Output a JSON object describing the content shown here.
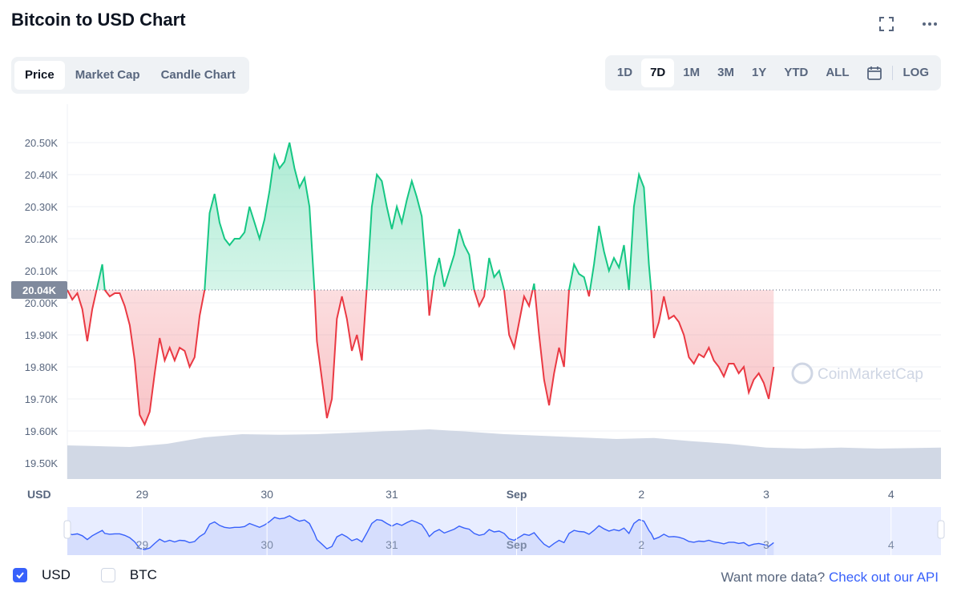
{
  "title": "Bitcoin to USD Chart",
  "tabs": [
    {
      "label": "Price",
      "active": true
    },
    {
      "label": "Market Cap",
      "active": false
    },
    {
      "label": "Candle Chart",
      "active": false
    }
  ],
  "ranges": [
    "1D",
    "7D",
    "1M",
    "3M",
    "1Y",
    "YTD",
    "ALL"
  ],
  "active_range": "7D",
  "log_label": "LOG",
  "icons": {
    "fullscreen": "fullscreen-icon",
    "more": "more-dots-icon",
    "calendar": "calendar-icon"
  },
  "colors": {
    "up": "#16c784",
    "down": "#ea3943",
    "volume": "#cfd6e4",
    "accent": "#3861fb",
    "navigator_line": "#3861fb"
  },
  "chart_data": {
    "type": "line",
    "currency_label": "USD",
    "current_price_label": "20.04K",
    "baseline": 20040,
    "ylim": [
      19450,
      20620
    ],
    "y_ticks": [
      {
        "value": 20500,
        "label": "20.50K"
      },
      {
        "value": 20400,
        "label": "20.40K"
      },
      {
        "value": 20300,
        "label": "20.30K"
      },
      {
        "value": 20200,
        "label": "20.20K"
      },
      {
        "value": 20100,
        "label": "20.10K"
      },
      {
        "value": 20000,
        "label": "20.00K"
      },
      {
        "value": 19900,
        "label": "19.90K"
      },
      {
        "value": 19800,
        "label": "19.80K"
      },
      {
        "value": 19700,
        "label": "19.70K"
      },
      {
        "value": 19600,
        "label": "19.60K"
      },
      {
        "value": 19500,
        "label": "19.50K"
      }
    ],
    "x_start": "Aug 28 ~10:00",
    "x_ticks": [
      {
        "day": 1.0,
        "label": "29"
      },
      {
        "day": 2.0,
        "label": "30"
      },
      {
        "day": 3.0,
        "label": "31"
      },
      {
        "day": 4.0,
        "label": "Sep"
      },
      {
        "day": 5.0,
        "label": "2"
      },
      {
        "day": 6.0,
        "label": "3"
      },
      {
        "day": 7.0,
        "label": "4"
      }
    ],
    "x_range_days": [
      0.4,
      7.4
    ],
    "series": [
      {
        "values": [
          [
            0.4,
            20040
          ],
          [
            0.44,
            20010
          ],
          [
            0.48,
            20030
          ],
          [
            0.52,
            19980
          ],
          [
            0.56,
            19880
          ],
          [
            0.6,
            19980
          ],
          [
            0.64,
            20050
          ],
          [
            0.68,
            20120
          ],
          [
            0.7,
            20040
          ],
          [
            0.74,
            20020
          ],
          [
            0.78,
            20030
          ],
          [
            0.82,
            20030
          ],
          [
            0.86,
            19990
          ],
          [
            0.9,
            19930
          ],
          [
            0.94,
            19820
          ],
          [
            0.98,
            19650
          ],
          [
            1.02,
            19620
          ],
          [
            1.06,
            19660
          ],
          [
            1.1,
            19780
          ],
          [
            1.14,
            19890
          ],
          [
            1.18,
            19820
          ],
          [
            1.22,
            19860
          ],
          [
            1.26,
            19820
          ],
          [
            1.3,
            19860
          ],
          [
            1.34,
            19850
          ],
          [
            1.38,
            19800
          ],
          [
            1.42,
            19830
          ],
          [
            1.46,
            19960
          ],
          [
            1.5,
            20040
          ],
          [
            1.54,
            20280
          ],
          [
            1.58,
            20340
          ],
          [
            1.62,
            20250
          ],
          [
            1.66,
            20200
          ],
          [
            1.7,
            20180
          ],
          [
            1.74,
            20200
          ],
          [
            1.78,
            20200
          ],
          [
            1.82,
            20220
          ],
          [
            1.86,
            20300
          ],
          [
            1.9,
            20250
          ],
          [
            1.94,
            20200
          ],
          [
            1.98,
            20260
          ],
          [
            2.02,
            20350
          ],
          [
            2.06,
            20460
          ],
          [
            2.1,
            20420
          ],
          [
            2.14,
            20440
          ],
          [
            2.18,
            20500
          ],
          [
            2.22,
            20420
          ],
          [
            2.26,
            20360
          ],
          [
            2.3,
            20390
          ],
          [
            2.34,
            20300
          ],
          [
            2.38,
            20040
          ],
          [
            2.4,
            19880
          ],
          [
            2.44,
            19760
          ],
          [
            2.48,
            19640
          ],
          [
            2.52,
            19700
          ],
          [
            2.56,
            19950
          ],
          [
            2.6,
            20020
          ],
          [
            2.64,
            19950
          ],
          [
            2.68,
            19850
          ],
          [
            2.72,
            19900
          ],
          [
            2.76,
            19820
          ],
          [
            2.8,
            20050
          ],
          [
            2.84,
            20300
          ],
          [
            2.88,
            20400
          ],
          [
            2.92,
            20380
          ],
          [
            2.96,
            20300
          ],
          [
            3.0,
            20230
          ],
          [
            3.04,
            20300
          ],
          [
            3.08,
            20250
          ],
          [
            3.12,
            20320
          ],
          [
            3.16,
            20380
          ],
          [
            3.2,
            20330
          ],
          [
            3.24,
            20270
          ],
          [
            3.28,
            20080
          ],
          [
            3.3,
            19960
          ],
          [
            3.34,
            20080
          ],
          [
            3.38,
            20140
          ],
          [
            3.42,
            20050
          ],
          [
            3.46,
            20100
          ],
          [
            3.5,
            20150
          ],
          [
            3.54,
            20230
          ],
          [
            3.58,
            20180
          ],
          [
            3.62,
            20150
          ],
          [
            3.66,
            20040
          ],
          [
            3.7,
            19990
          ],
          [
            3.74,
            20020
          ],
          [
            3.78,
            20140
          ],
          [
            3.82,
            20080
          ],
          [
            3.86,
            20100
          ],
          [
            3.9,
            20040
          ],
          [
            3.94,
            19900
          ],
          [
            3.98,
            19860
          ],
          [
            4.02,
            19940
          ],
          [
            4.06,
            20020
          ],
          [
            4.1,
            19990
          ],
          [
            4.14,
            20060
          ],
          [
            4.18,
            19900
          ],
          [
            4.22,
            19760
          ],
          [
            4.26,
            19680
          ],
          [
            4.3,
            19780
          ],
          [
            4.34,
            19860
          ],
          [
            4.38,
            19800
          ],
          [
            4.42,
            20040
          ],
          [
            4.46,
            20120
          ],
          [
            4.5,
            20090
          ],
          [
            4.54,
            20080
          ],
          [
            4.58,
            20020
          ],
          [
            4.62,
            20120
          ],
          [
            4.66,
            20240
          ],
          [
            4.7,
            20160
          ],
          [
            4.74,
            20100
          ],
          [
            4.78,
            20140
          ],
          [
            4.82,
            20110
          ],
          [
            4.86,
            20180
          ],
          [
            4.9,
            20040
          ],
          [
            4.94,
            20300
          ],
          [
            4.98,
            20400
          ],
          [
            5.02,
            20360
          ],
          [
            5.06,
            20120
          ],
          [
            5.08,
            20030
          ],
          [
            5.1,
            19890
          ],
          [
            5.14,
            19940
          ],
          [
            5.18,
            20020
          ],
          [
            5.22,
            19950
          ],
          [
            5.26,
            19960
          ],
          [
            5.3,
            19940
          ],
          [
            5.34,
            19900
          ],
          [
            5.38,
            19830
          ],
          [
            5.42,
            19810
          ],
          [
            5.46,
            19840
          ],
          [
            5.5,
            19830
          ],
          [
            5.54,
            19860
          ],
          [
            5.58,
            19820
          ],
          [
            5.62,
            19800
          ],
          [
            5.66,
            19770
          ],
          [
            5.7,
            19810
          ],
          [
            5.74,
            19810
          ],
          [
            5.78,
            19780
          ],
          [
            5.82,
            19800
          ],
          [
            5.86,
            19720
          ],
          [
            5.9,
            19760
          ],
          [
            5.94,
            19780
          ],
          [
            5.98,
            19750
          ],
          [
            6.02,
            19700
          ],
          [
            6.06,
            19800
          ]
        ]
      }
    ],
    "volume_series": [
      [
        0.4,
        19555
      ],
      [
        0.6,
        19553
      ],
      [
        0.9,
        19550
      ],
      [
        1.2,
        19560
      ],
      [
        1.5,
        19580
      ],
      [
        1.8,
        19590
      ],
      [
        2.1,
        19588
      ],
      [
        2.4,
        19590
      ],
      [
        2.7,
        19595
      ],
      [
        3.0,
        19600
      ],
      [
        3.3,
        19605
      ],
      [
        3.6,
        19598
      ],
      [
        3.9,
        19590
      ],
      [
        4.2,
        19585
      ],
      [
        4.5,
        19580
      ],
      [
        4.8,
        19575
      ],
      [
        5.1,
        19578
      ],
      [
        5.4,
        19568
      ],
      [
        5.7,
        19560
      ],
      [
        6.0,
        19548
      ],
      [
        6.3,
        19545
      ],
      [
        6.6,
        19548
      ],
      [
        6.9,
        19545
      ],
      [
        7.4,
        19548
      ]
    ],
    "watermark": "CoinMarketCap"
  },
  "navigator": {
    "labels": [
      "29",
      "30",
      "31",
      "Sep",
      "2",
      "3",
      "4"
    ]
  },
  "legend": [
    {
      "label": "USD",
      "checked": true
    },
    {
      "label": "BTC",
      "checked": false
    }
  ],
  "footer": {
    "prompt": "Want more data?",
    "link": "Check out our API"
  }
}
